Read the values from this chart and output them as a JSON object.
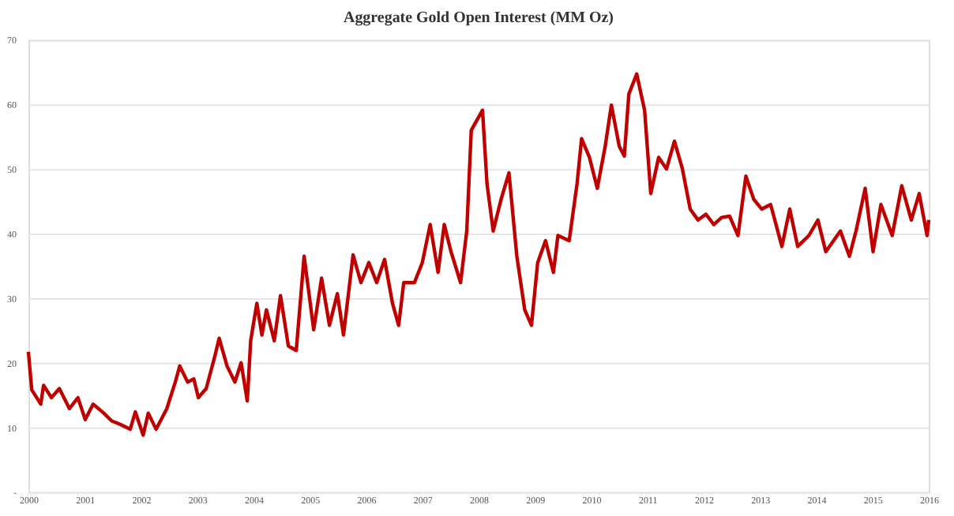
{
  "chart_data": {
    "type": "line",
    "title": "Aggregate Gold Open Interest (MM Oz)",
    "x": [
      2000.0,
      2000.06,
      2000.22,
      2000.27,
      2000.41,
      2000.55,
      2000.73,
      2000.88,
      2001.01,
      2001.15,
      2001.34,
      2001.48,
      2001.62,
      2001.81,
      2001.9,
      2002.04,
      2002.13,
      2002.27,
      2002.46,
      2002.61,
      2002.69,
      2002.83,
      2002.94,
      2003.02,
      2003.16,
      2003.31,
      2003.39,
      2003.53,
      2003.67,
      2003.78,
      2003.89,
      2003.95,
      2004.06,
      2004.15,
      2004.23,
      2004.37,
      2004.48,
      2004.62,
      2004.76,
      2004.9,
      2005.07,
      2005.21,
      2005.35,
      2005.49,
      2005.6,
      2005.77,
      2005.91,
      2006.05,
      2006.19,
      2006.33,
      2006.47,
      2006.58,
      2006.67,
      2006.86,
      2007.0,
      2007.14,
      2007.28,
      2007.39,
      2007.51,
      2007.68,
      2007.79,
      2007.87,
      2008.07,
      2008.15,
      2008.26,
      2008.4,
      2008.54,
      2008.68,
      2008.82,
      2008.94,
      2009.05,
      2009.19,
      2009.33,
      2009.41,
      2009.61,
      2009.75,
      2009.83,
      2009.97,
      2010.11,
      2010.25,
      2010.36,
      2010.5,
      2010.59,
      2010.67,
      2010.81,
      2010.95,
      2011.06,
      2011.2,
      2011.34,
      2011.48,
      2011.62,
      2011.76,
      2011.9,
      2012.04,
      2012.18,
      2012.32,
      2012.46,
      2012.61,
      2012.75,
      2012.89,
      2013.03,
      2013.19,
      2013.39,
      2013.53,
      2013.67,
      2013.87,
      2014.03,
      2014.17,
      2014.43,
      2014.59,
      2014.71,
      2014.87,
      2015.01,
      2015.15,
      2015.35,
      2015.52,
      2015.69,
      2015.83,
      2015.97,
      2016.0
    ],
    "series": [
      {
        "color": "#c00000",
        "values": [
          21.7,
          15.8,
          13.6,
          16.5,
          14.6,
          16,
          12.9,
          14.6,
          11.2,
          13.6,
          12.2,
          11,
          10.5,
          9.7,
          12.4,
          8.8,
          12.2,
          9.7,
          12.9,
          17,
          19.5,
          17,
          17.5,
          14.6,
          16,
          20.9,
          23.8,
          19.5,
          17,
          20,
          14.1,
          23.4,
          29.2,
          24.3,
          28.2,
          23.4,
          30.4,
          22.6,
          21.9,
          36.5,
          25.1,
          33.1,
          25.8,
          30.7,
          24.3,
          36.7,
          32.4,
          35.5,
          32.4,
          36,
          29.2,
          25.8,
          32.4,
          32.4,
          35.5,
          41.4,
          34,
          41.4,
          37.2,
          32.4,
          40.4,
          56,
          59.1,
          47.7,
          40.4,
          45.3,
          49.4,
          36.5,
          28.2,
          25.8,
          35.5,
          38.9,
          34,
          39.7,
          38.9,
          47.7,
          54.7,
          51.8,
          47,
          53.5,
          59.9,
          53.5,
          52,
          61.6,
          64.7,
          59.1,
          46.2,
          51.8,
          50,
          54.3,
          50.1,
          43.8,
          42.1,
          43,
          41.4,
          42.5,
          42.7,
          39.7,
          48.9,
          45.3,
          43.8,
          44.5,
          38,
          43.8,
          38,
          39.7,
          42.1,
          37.2,
          40.4,
          36.5,
          40.5,
          47,
          37.2,
          44.5,
          39.7,
          47.4,
          42.1,
          46.2,
          39.7,
          42.1
        ]
      }
    ],
    "xlim": [
      2000,
      2016
    ],
    "xticks": [
      2000,
      2001,
      2002,
      2003,
      2004,
      2005,
      2006,
      2007,
      2008,
      2009,
      2010,
      2011,
      2012,
      2013,
      2014,
      2015,
      2016
    ],
    "ylim": [
      0,
      70
    ],
    "yticks": [
      {
        "value": 0,
        "label": "-"
      },
      10,
      20,
      30,
      40,
      50,
      60,
      70
    ],
    "grid": "y",
    "marker": "none",
    "line_style": "solid"
  }
}
